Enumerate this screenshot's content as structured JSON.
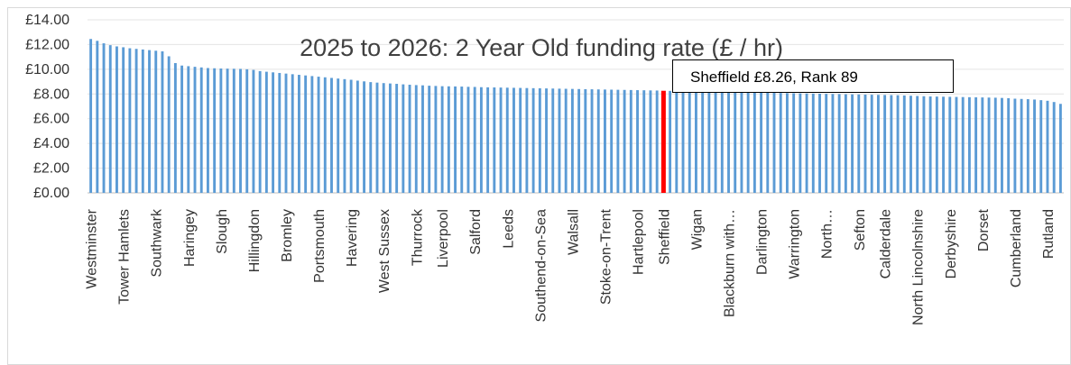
{
  "chart_data": {
    "type": "bar",
    "title": "2025 to 2026:  2 Year Old funding rate (£ / hr)",
    "ylim": [
      0,
      14
    ],
    "y_ticks": [
      "£0.00",
      "£2.00",
      "£4.00",
      "£6.00",
      "£8.00",
      "£10.00",
      "£12.00",
      "£14.00"
    ],
    "grid": true,
    "bar_color": "#5B9BD5",
    "highlight_color": "#FF0000",
    "highlight_index": 88,
    "callout": "Sheffield £8.26, Rank 89",
    "category_labels": [
      {
        "index": 0,
        "label": "Westminster"
      },
      {
        "index": 5,
        "label": "Tower Hamlets"
      },
      {
        "index": 10,
        "label": "Southwark"
      },
      {
        "index": 15,
        "label": "Haringey"
      },
      {
        "index": 20,
        "label": "Slough"
      },
      {
        "index": 25,
        "label": "Hillingdon"
      },
      {
        "index": 30,
        "label": "Bromley"
      },
      {
        "index": 35,
        "label": "Portsmouth"
      },
      {
        "index": 40,
        "label": "Havering"
      },
      {
        "index": 45,
        "label": "West Sussex"
      },
      {
        "index": 50,
        "label": "Thurrock"
      },
      {
        "index": 54,
        "label": "Liverpool"
      },
      {
        "index": 59,
        "label": "Salford"
      },
      {
        "index": 64,
        "label": "Leeds"
      },
      {
        "index": 69,
        "label": "Southend-on-Sea"
      },
      {
        "index": 74,
        "label": "Walsall"
      },
      {
        "index": 79,
        "label": "Stoke-on-Trent"
      },
      {
        "index": 84,
        "label": "Hartlepool"
      },
      {
        "index": 88,
        "label": "Sheffield"
      },
      {
        "index": 93,
        "label": "Wigan"
      },
      {
        "index": 98,
        "label": "Blackburn with…"
      },
      {
        "index": 103,
        "label": "Darlington"
      },
      {
        "index": 108,
        "label": "Warrington"
      },
      {
        "index": 113,
        "label": "North…"
      },
      {
        "index": 118,
        "label": "Sefton"
      },
      {
        "index": 122,
        "label": "Calderdale"
      },
      {
        "index": 127,
        "label": "North Lincolnshire"
      },
      {
        "index": 132,
        "label": "Derbyshire"
      },
      {
        "index": 137,
        "label": "Dorset"
      },
      {
        "index": 142,
        "label": "Cumberland"
      },
      {
        "index": 147,
        "label": "Rutland"
      }
    ],
    "values": [
      12.45,
      12.3,
      12.1,
      11.95,
      11.85,
      11.78,
      11.7,
      11.65,
      11.6,
      11.55,
      11.5,
      11.45,
      11.05,
      10.5,
      10.3,
      10.25,
      10.2,
      10.15,
      10.1,
      10.08,
      10.06,
      10.05,
      10.04,
      10.03,
      10.0,
      9.95,
      9.85,
      9.8,
      9.75,
      9.7,
      9.65,
      9.6,
      9.55,
      9.5,
      9.45,
      9.4,
      9.35,
      9.3,
      9.25,
      9.2,
      9.15,
      9.08,
      9.02,
      8.96,
      8.92,
      8.88,
      8.85,
      8.82,
      8.78,
      8.75,
      8.72,
      8.7,
      8.67,
      8.65,
      8.63,
      8.62,
      8.61,
      8.6,
      8.58,
      8.57,
      8.55,
      8.54,
      8.53,
      8.52,
      8.51,
      8.5,
      8.49,
      8.48,
      8.47,
      8.46,
      8.45,
      8.44,
      8.43,
      8.42,
      8.41,
      8.4,
      8.39,
      8.38,
      8.37,
      8.36,
      8.35,
      8.34,
      8.33,
      8.32,
      8.31,
      8.3,
      8.29,
      8.28,
      8.26,
      8.25,
      8.24,
      8.23,
      8.22,
      8.21,
      8.2,
      8.19,
      8.18,
      8.17,
      8.16,
      8.15,
      8.14,
      8.13,
      8.12,
      8.11,
      8.1,
      8.09,
      8.08,
      8.07,
      8.06,
      8.05,
      8.04,
      8.03,
      8.02,
      8.01,
      8.0,
      7.99,
      7.98,
      7.97,
      7.96,
      7.95,
      7.94,
      7.93,
      7.92,
      7.91,
      7.9,
      7.88,
      7.86,
      7.84,
      7.82,
      7.8,
      7.79,
      7.78,
      7.77,
      7.76,
      7.75,
      7.74,
      7.73,
      7.72,
      7.71,
      7.7,
      7.68,
      7.66,
      7.62,
      7.6,
      7.58,
      7.55,
      7.5,
      7.45,
      7.35,
      7.2
    ]
  }
}
